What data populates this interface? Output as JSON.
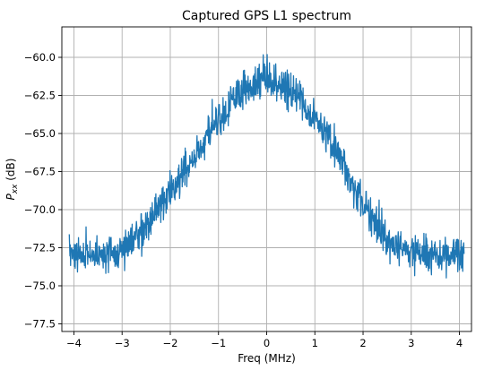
{
  "chart_data": {
    "type": "line",
    "title": "Captured GPS L1 spectrum",
    "xlabel": "Freq (MHz)",
    "ylabel_base": "P",
    "ylabel_sub": "xx",
    "ylabel_unit": " (dB)",
    "xlim": [
      -4.25,
      4.25
    ],
    "ylim": [
      -78.0,
      -58.0
    ],
    "x_ticks": [
      -4,
      -3,
      -2,
      -1,
      0,
      1,
      2,
      3,
      4
    ],
    "x_tick_labels": [
      "−4",
      "−3",
      "−2",
      "−1",
      "0",
      "1",
      "2",
      "3",
      "4"
    ],
    "y_ticks": [
      -77.5,
      -75.0,
      -72.5,
      -70.0,
      -67.5,
      -65.0,
      -62.5,
      -60.0
    ],
    "y_tick_labels": [
      "−77.5",
      "−75.0",
      "−72.5",
      "−70.0",
      "−67.5",
      "−65.0",
      "−62.5",
      "−60.0"
    ],
    "grid": true,
    "line_color": "#1f77b4",
    "series": [
      {
        "envelope_x": [
          -4.096,
          -3.5,
          -3.0,
          -2.5,
          -2.0,
          -1.5,
          -1.0,
          -0.5,
          0.0,
          0.5,
          1.0,
          1.5,
          2.0,
          2.5,
          3.0,
          3.5,
          4.096
        ],
        "envelope_y": [
          -72.8,
          -73.0,
          -72.5,
          -71.0,
          -69.0,
          -66.5,
          -64.0,
          -62.2,
          -61.3,
          -62.2,
          -64.0,
          -66.5,
          -69.5,
          -72.0,
          -72.8,
          -73.0,
          -72.8
        ],
        "noise_amplitude_db": 1.1,
        "num_points": 1200
      }
    ]
  }
}
